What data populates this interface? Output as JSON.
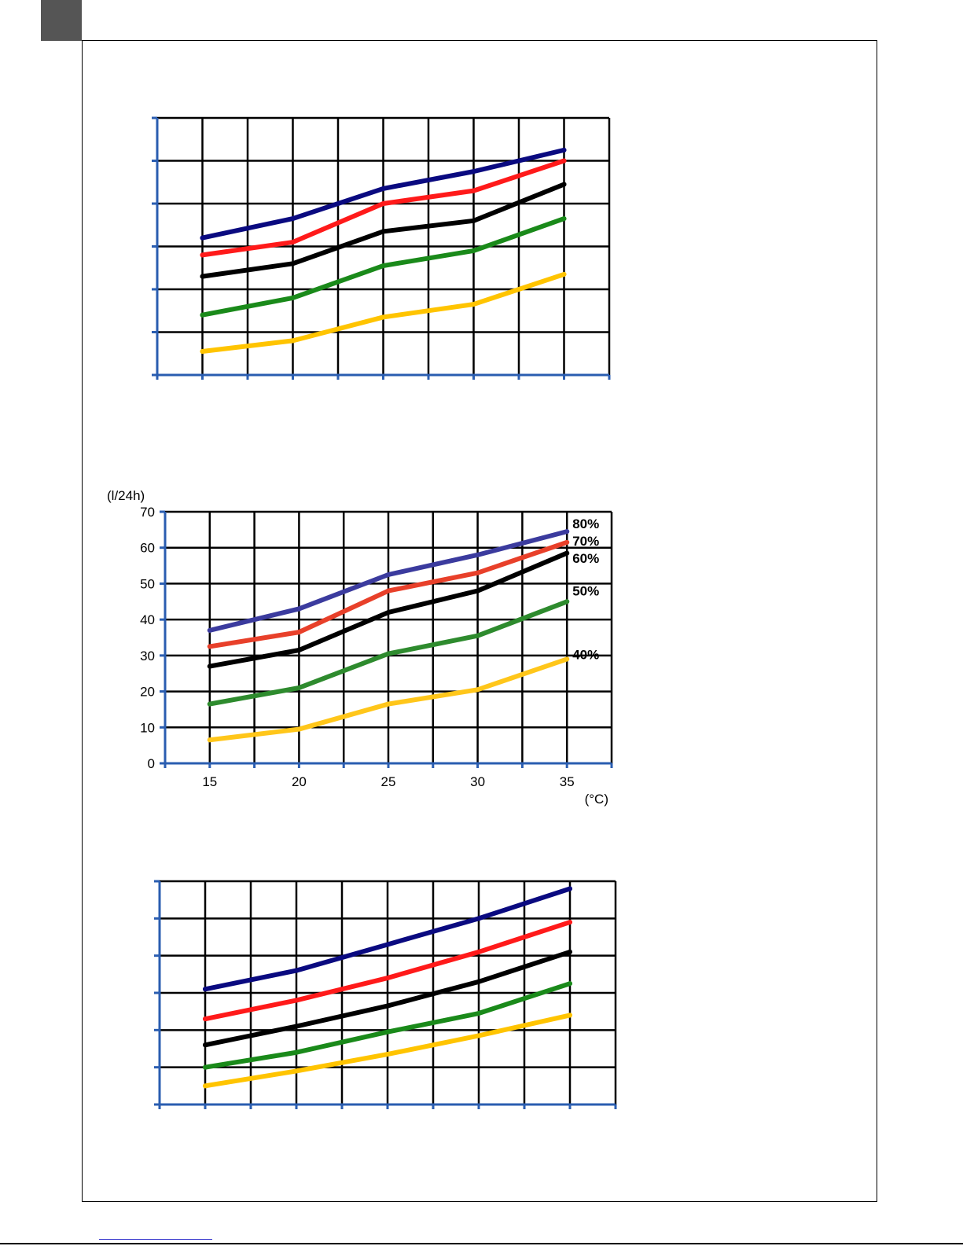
{
  "page": {
    "corner_block_color": "#555555"
  },
  "chart_data": [
    {
      "type": "line",
      "title": "",
      "xlabel": "",
      "ylabel": "",
      "grid": true,
      "legend": "none",
      "x": [
        15,
        20,
        25,
        30,
        35
      ],
      "xlim": [
        12.5,
        37.5
      ],
      "ylim": [
        0,
        60
      ],
      "series": [
        {
          "color": "#0a0a80",
          "values": [
            32,
            36.5,
            43.5,
            47.5,
            52.5
          ]
        },
        {
          "color": "#ff1a1a",
          "values": [
            28,
            31,
            40,
            43,
            50
          ]
        },
        {
          "color": "#000000",
          "values": [
            23,
            26,
            33.5,
            36,
            44.5
          ]
        },
        {
          "color": "#1a8a1a",
          "values": [
            14,
            18,
            25.5,
            29,
            36.5
          ]
        },
        {
          "color": "#ffc400",
          "values": [
            5.5,
            8,
            13.5,
            16.5,
            23.5
          ]
        }
      ]
    },
    {
      "type": "line",
      "title": "",
      "ylabel": "(l/24h)",
      "xlabel": "(°C)",
      "grid": true,
      "legend": "inline-right",
      "x": [
        15,
        20,
        25,
        30,
        35
      ],
      "x_ticks": [
        "15",
        "20",
        "25",
        "30",
        "35"
      ],
      "y_ticks": [
        "0",
        "10",
        "20",
        "30",
        "40",
        "50",
        "60",
        "70"
      ],
      "xlim": [
        12.5,
        37.5
      ],
      "ylim": [
        0,
        70
      ],
      "series": [
        {
          "name": "80%",
          "color": "#3b3b9e",
          "values": [
            37,
            43,
            52.5,
            58,
            64.5
          ]
        },
        {
          "name": "70%",
          "color": "#e8402a",
          "values": [
            32.5,
            36.5,
            48,
            53,
            61.5
          ]
        },
        {
          "name": "60%",
          "color": "#000000",
          "values": [
            27,
            31.5,
            42,
            48,
            58.5
          ]
        },
        {
          "name": "50%",
          "color": "#2e8b2e",
          "values": [
            16.5,
            21,
            30.5,
            35.5,
            45
          ]
        },
        {
          "name": "40%",
          "color": "#ffc61a",
          "values": [
            6.5,
            9.5,
            16.5,
            20.5,
            29
          ]
        }
      ]
    },
    {
      "type": "line",
      "title": "",
      "xlabel": "",
      "ylabel": "",
      "grid": true,
      "legend": "none",
      "x": [
        15,
        20,
        25,
        30,
        35
      ],
      "xlim": [
        12.5,
        37.5
      ],
      "ylim": [
        0,
        60
      ],
      "series": [
        {
          "color": "#0a0a80",
          "values": [
            31,
            36,
            43,
            50,
            58
          ]
        },
        {
          "color": "#ff1a1a",
          "values": [
            23,
            28,
            34,
            41,
            49
          ]
        },
        {
          "color": "#000000",
          "values": [
            16,
            21,
            26.5,
            33,
            41
          ]
        },
        {
          "color": "#1a8a1a",
          "values": [
            10,
            14,
            19.5,
            24.5,
            32.5
          ]
        },
        {
          "color": "#ffc400",
          "values": [
            5,
            9,
            13.5,
            18.5,
            24
          ]
        }
      ]
    }
  ]
}
